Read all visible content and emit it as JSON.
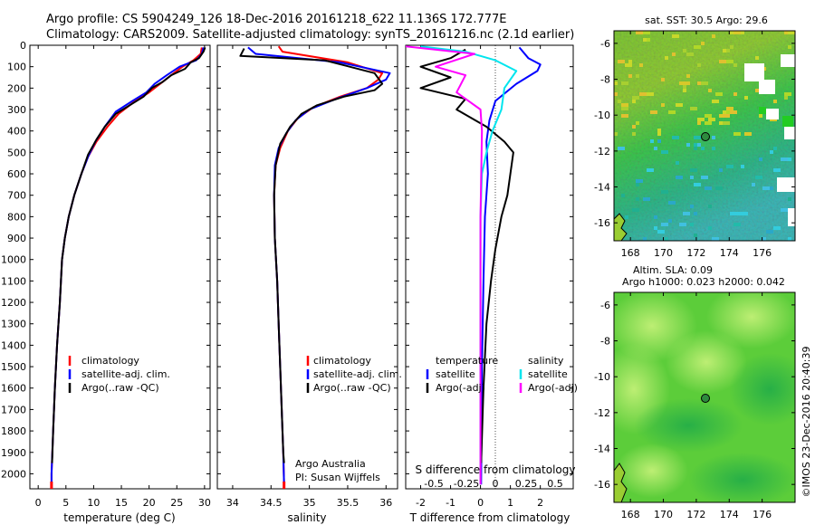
{
  "title": {
    "line1": "Argo profile: CS 5904249_126 18-Dec-2016 20161218_622 11.136S 172.777E",
    "line2": "Climatology: CARS2009. Satellite-adjusted climatology: synTS_20161216.nc (2.1d earlier)"
  },
  "side_stamp": "©IMOS 23-Dec-2016 20:40:39",
  "colors": {
    "climatology": "#ff0000",
    "satellite": "#0000ff",
    "argo": "#000000",
    "temp_diff": "#ff00ff",
    "sal_diff": "#00e5ee",
    "marker": "#006400"
  },
  "chart_data": [
    {
      "type": "line",
      "panel": "temperature",
      "xlabel": "temperature (deg C)",
      "ylabel": "",
      "xlim": [
        -1.5,
        31
      ],
      "ylim": [
        2070,
        0
      ],
      "xticks": [
        0,
        5,
        10,
        15,
        20,
        25,
        30
      ],
      "yticks": [
        0,
        100,
        200,
        300,
        400,
        500,
        600,
        700,
        800,
        900,
        1000,
        1100,
        1200,
        1300,
        1400,
        1500,
        1600,
        1700,
        1800,
        1900,
        2000
      ],
      "legend": {
        "placement": "bottom-left",
        "entries": [
          "climatology",
          "satellite-adj. clim.",
          "Argo(..raw -QC)"
        ]
      },
      "series": [
        {
          "name": "climatology",
          "color": "#ff0000",
          "points": [
            [
              29.5,
              10
            ],
            [
              29.3,
              40
            ],
            [
              28,
              70
            ],
            [
              26,
              100
            ],
            [
              24,
              140
            ],
            [
              22,
              180
            ],
            [
              20,
              220
            ],
            [
              17,
              270
            ],
            [
              14.5,
              320
            ],
            [
              12.5,
              380
            ],
            [
              10.5,
              450
            ],
            [
              9,
              520
            ],
            [
              7.8,
              600
            ],
            [
              6.5,
              700
            ],
            [
              5.5,
              800
            ],
            [
              4.8,
              900
            ],
            [
              4.3,
              1000
            ],
            [
              3.9,
              1200
            ],
            [
              3.4,
              1400
            ],
            [
              3,
              1600
            ],
            [
              2.7,
              1800
            ],
            [
              2.4,
              2000
            ],
            [
              2.4,
              2050
            ]
          ]
        },
        {
          "name": "satellite-adj. clim.",
          "color": "#0000ff",
          "points": [
            [
              29.8,
              10
            ],
            [
              29.5,
              40
            ],
            [
              28.5,
              70
            ],
            [
              25.5,
              100
            ],
            [
              23.2,
              140
            ],
            [
              21,
              180
            ],
            [
              19.5,
              220
            ],
            [
              17,
              260
            ],
            [
              14,
              310
            ],
            [
              12,
              380
            ],
            [
              10.3,
              450
            ],
            [
              9,
              520
            ],
            [
              7.8,
              600
            ],
            [
              6.5,
              700
            ],
            [
              5.5,
              800
            ],
            [
              4.8,
              900
            ],
            [
              4.3,
              1000
            ],
            [
              3.9,
              1200
            ],
            [
              3.4,
              1400
            ],
            [
              3,
              1600
            ],
            [
              2.7,
              1800
            ],
            [
              2.4,
              2000
            ],
            [
              2.4,
              2050
            ]
          ]
        },
        {
          "name": "Argo(..raw -QC)",
          "color": "#000000",
          "points": [
            [
              30.1,
              10
            ],
            [
              29.8,
              30
            ],
            [
              29,
              60
            ],
            [
              27.5,
              80
            ],
            [
              26.5,
              110
            ],
            [
              24,
              140
            ],
            [
              22.5,
              170
            ],
            [
              20.5,
              200
            ],
            [
              19,
              240
            ],
            [
              16.5,
              280
            ],
            [
              14,
              320
            ],
            [
              12,
              380
            ],
            [
              10.5,
              440
            ],
            [
              9,
              510
            ],
            [
              7.8,
              600
            ],
            [
              6.5,
              700
            ],
            [
              5.5,
              800
            ],
            [
              4.8,
              900
            ],
            [
              4.3,
              1000
            ],
            [
              3.9,
              1200
            ],
            [
              3.4,
              1400
            ],
            [
              3,
              1600
            ],
            [
              2.7,
              1800
            ],
            [
              2.5,
              1950
            ]
          ]
        }
      ]
    },
    {
      "type": "line",
      "panel": "salinity",
      "xlabel": "salinity",
      "ylabel": "",
      "xlim": [
        33.8,
        36.15
      ],
      "ylim": [
        2070,
        0
      ],
      "xticks": [
        34,
        34.5,
        35,
        35.5,
        36
      ],
      "xticklabels": [
        "34",
        "34.5",
        "35",
        "35.5",
        "36"
      ],
      "legend": {
        "placement": "bottom-right",
        "entries": [
          "climatology",
          "satellite-adj. clim.",
          "Argo(..raw -QC)"
        ]
      },
      "annotation": {
        "line1": "Argo Australia",
        "line2": "PI: Susan Wijffels"
      },
      "series": [
        {
          "name": "climatology",
          "color": "#ff0000",
          "points": [
            [
              34.6,
              5
            ],
            [
              34.65,
              30
            ],
            [
              35.5,
              80
            ],
            [
              35.95,
              130
            ],
            [
              35.9,
              160
            ],
            [
              35.75,
              200
            ],
            [
              35.4,
              240
            ],
            [
              35.05,
              290
            ],
            [
              34.85,
              340
            ],
            [
              34.72,
              400
            ],
            [
              34.62,
              480
            ],
            [
              34.56,
              560
            ],
            [
              34.54,
              700
            ],
            [
              34.55,
              900
            ],
            [
              34.58,
              1100
            ],
            [
              34.6,
              1300
            ],
            [
              34.62,
              1500
            ],
            [
              34.64,
              1700
            ],
            [
              34.66,
              1900
            ],
            [
              34.67,
              2050
            ]
          ]
        },
        {
          "name": "satellite-adj. clim.",
          "color": "#0000ff",
          "points": [
            [
              34.2,
              10
            ],
            [
              34.3,
              40
            ],
            [
              35.4,
              80
            ],
            [
              36.05,
              130
            ],
            [
              36,
              160
            ],
            [
              35.75,
              200
            ],
            [
              35.35,
              250
            ],
            [
              35,
              300
            ],
            [
              34.82,
              350
            ],
            [
              34.7,
              410
            ],
            [
              34.6,
              480
            ],
            [
              34.55,
              560
            ],
            [
              34.54,
              700
            ],
            [
              34.55,
              900
            ],
            [
              34.58,
              1100
            ],
            [
              34.6,
              1300
            ],
            [
              34.62,
              1500
            ],
            [
              34.64,
              1700
            ],
            [
              34.66,
              1900
            ],
            [
              34.67,
              2050
            ]
          ]
        },
        {
          "name": "Argo(..raw -QC)",
          "color": "#000000",
          "points": [
            [
              34.15,
              15
            ],
            [
              34.1,
              50
            ],
            [
              35.2,
              70
            ],
            [
              35.85,
              130
            ],
            [
              35.95,
              180
            ],
            [
              35.85,
              210
            ],
            [
              35.45,
              240
            ],
            [
              35.1,
              280
            ],
            [
              34.9,
              320
            ],
            [
              34.75,
              380
            ],
            [
              34.62,
              460
            ],
            [
              34.56,
              560
            ],
            [
              34.54,
              700
            ],
            [
              34.55,
              900
            ],
            [
              34.58,
              1100
            ],
            [
              34.6,
              1300
            ],
            [
              34.62,
              1500
            ],
            [
              34.64,
              1700
            ],
            [
              34.66,
              1900
            ],
            [
              34.67,
              1950
            ]
          ]
        }
      ]
    },
    {
      "type": "line",
      "panel": "difference",
      "xlabel": "T difference from climatology",
      "xlabel_top": "S difference from climatology",
      "xlim": [
        -2.5,
        3.1
      ],
      "ylim": [
        2070,
        0
      ],
      "xticks": [
        -2,
        -1,
        0,
        1,
        2
      ],
      "xticklabels": [
        "-2",
        "-1",
        "0",
        "1",
        "2"
      ],
      "sticklabels": [
        "-0.5",
        "-0.25",
        "0",
        "0.25",
        "0.5"
      ],
      "legend": {
        "placement": "top",
        "temperature_header": "temperature",
        "salinity_header": "salinity",
        "entries": [
          "satellite",
          "Argo(-adj)",
          "satellite",
          "Argo(-adj)"
        ]
      },
      "series": [
        {
          "name": "temperature satellite",
          "color": "#0000ff",
          "points": [
            [
              1.3,
              10
            ],
            [
              1.6,
              60
            ],
            [
              2,
              90
            ],
            [
              1.9,
              120
            ],
            [
              1.2,
              180
            ],
            [
              0.5,
              260
            ],
            [
              0.3,
              350
            ],
            [
              0.2,
              450
            ],
            [
              0.25,
              600
            ],
            [
              0.15,
              800
            ],
            [
              0.1,
              1100
            ],
            [
              0.05,
              1500
            ],
            [
              0.02,
              2050
            ]
          ]
        },
        {
          "name": "temperature Argo(-adj)",
          "color": "#000000",
          "points": [
            [
              -0.5,
              20
            ],
            [
              -1,
              60
            ],
            [
              -2,
              100
            ],
            [
              -1,
              150
            ],
            [
              -2,
              200
            ],
            [
              -0.5,
              250
            ],
            [
              -0.8,
              300
            ],
            [
              0.2,
              380
            ],
            [
              0.8,
              450
            ],
            [
              1.1,
              500
            ],
            [
              1,
              600
            ],
            [
              0.9,
              700
            ],
            [
              0.7,
              800
            ],
            [
              0.5,
              950
            ],
            [
              0.35,
              1100
            ],
            [
              0.2,
              1300
            ],
            [
              0.1,
              1600
            ],
            [
              0.02,
              1950
            ]
          ]
        },
        {
          "name": "salinity satellite",
          "color": "#00e5ee",
          "points": [
            [
              -2,
              5
            ],
            [
              -0.5,
              30
            ],
            [
              0.5,
              70
            ],
            [
              1.2,
              120
            ],
            [
              0.8,
              200
            ],
            [
              0.7,
              300
            ],
            [
              0.4,
              400
            ],
            [
              0.2,
              500
            ],
            [
              0.05,
              600
            ],
            [
              0,
              800
            ],
            [
              0,
              1200
            ],
            [
              0,
              2050
            ]
          ]
        },
        {
          "name": "salinity Argo(-adj)",
          "color": "#ff00ff",
          "points": [
            [
              -2.5,
              5
            ],
            [
              -0.2,
              40
            ],
            [
              -1.5,
              100
            ],
            [
              -0.5,
              140
            ],
            [
              -0.8,
              220
            ],
            [
              0,
              300
            ],
            [
              0.05,
              400
            ],
            [
              0,
              800
            ],
            [
              0,
              2050
            ]
          ]
        }
      ]
    },
    {
      "type": "heatmap",
      "panel": "sst-map",
      "title": "sat. SST: 30.5  Argo: 29.6",
      "xticks": [
        168,
        170,
        172,
        174,
        176
      ],
      "yticks": [
        -6,
        -8,
        -10,
        -12,
        -14,
        -16
      ],
      "xlim": [
        167,
        178
      ],
      "ylim": [
        -17,
        -5.3
      ],
      "marker": [
        172.777,
        -11.136
      ]
    },
    {
      "type": "heatmap",
      "panel": "sla-map",
      "title_line1": "Altim. SLA: 0.09",
      "title_line2": "Argo h1000: 0.023 h2000: 0.042",
      "xticks": [
        168,
        170,
        172,
        174,
        176
      ],
      "yticks": [
        -6,
        -8,
        -10,
        -12,
        -14,
        -16
      ],
      "xlim": [
        167,
        178
      ],
      "ylim": [
        -17,
        -5.3
      ],
      "marker": [
        172.777,
        -11.136
      ]
    }
  ]
}
